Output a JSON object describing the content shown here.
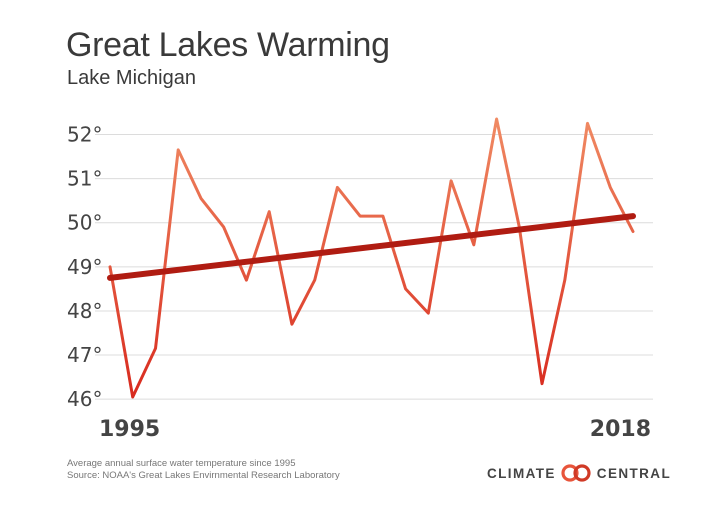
{
  "chart_data": {
    "type": "line",
    "title": "Great Lakes Warming",
    "subtitle": "Lake Michigan",
    "x": [
      1995,
      1996,
      1997,
      1998,
      1999,
      2000,
      2001,
      2002,
      2003,
      2004,
      2005,
      2006,
      2007,
      2008,
      2009,
      2010,
      2011,
      2012,
      2013,
      2014,
      2015,
      2016,
      2017,
      2018
    ],
    "x_tick_labels": [
      "1995",
      "2018"
    ],
    "series": [
      {
        "values": [
          49.0,
          46.05,
          47.15,
          51.65,
          50.55,
          49.9,
          48.7,
          50.25,
          47.7,
          48.7,
          50.8,
          50.15,
          50.15,
          48.5,
          47.95,
          50.95,
          49.5,
          52.35,
          49.9,
          46.35,
          48.7,
          52.25,
          50.8,
          49.8
        ],
        "color": "#e8553b"
      },
      {
        "type": "trend",
        "values_at_endpoints": [
          48.75,
          50.15
        ],
        "color": "#b01c12"
      }
    ],
    "y_ticks": [
      46,
      47,
      48,
      49,
      50,
      51,
      52
    ],
    "y_tick_labels": [
      "46°",
      "47°",
      "48°",
      "49°",
      "50°",
      "51°",
      "52°"
    ],
    "ylim": [
      45.8,
      52.6
    ],
    "grid": true,
    "gradient_colors": [
      "#f08a63",
      "#d82a1e"
    ]
  },
  "footer": {
    "line1": "Average annual surface water temperature since 1995",
    "line2": "Source: NOAA's Great Lakes Envirnmental Research Laboratory"
  },
  "logo": {
    "left_text": "CLIMATE",
    "right_text": "CENTRAL",
    "mark_icon": "double-ring-icon"
  }
}
